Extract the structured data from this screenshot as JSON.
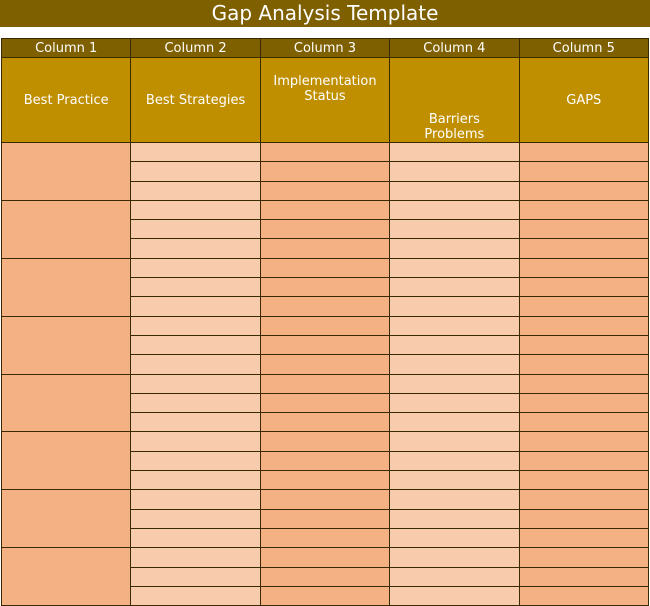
{
  "title": "Gap Analysis Template",
  "columns": [
    "Column 1",
    "Column 2",
    "Column 3",
    "Column 4",
    "Column 5"
  ],
  "subheaders": [
    "Best Practice",
    "Best Strategies",
    "Implementation Status",
    "Barriers Problems",
    "GAPS"
  ],
  "groups": 8,
  "rows_per_group": 3,
  "colors": {
    "title_bg": "#7f6000",
    "subheader_bg": "#bf8f00",
    "dark_cell": "#f4b183",
    "light_cell": "#f8cbad"
  }
}
